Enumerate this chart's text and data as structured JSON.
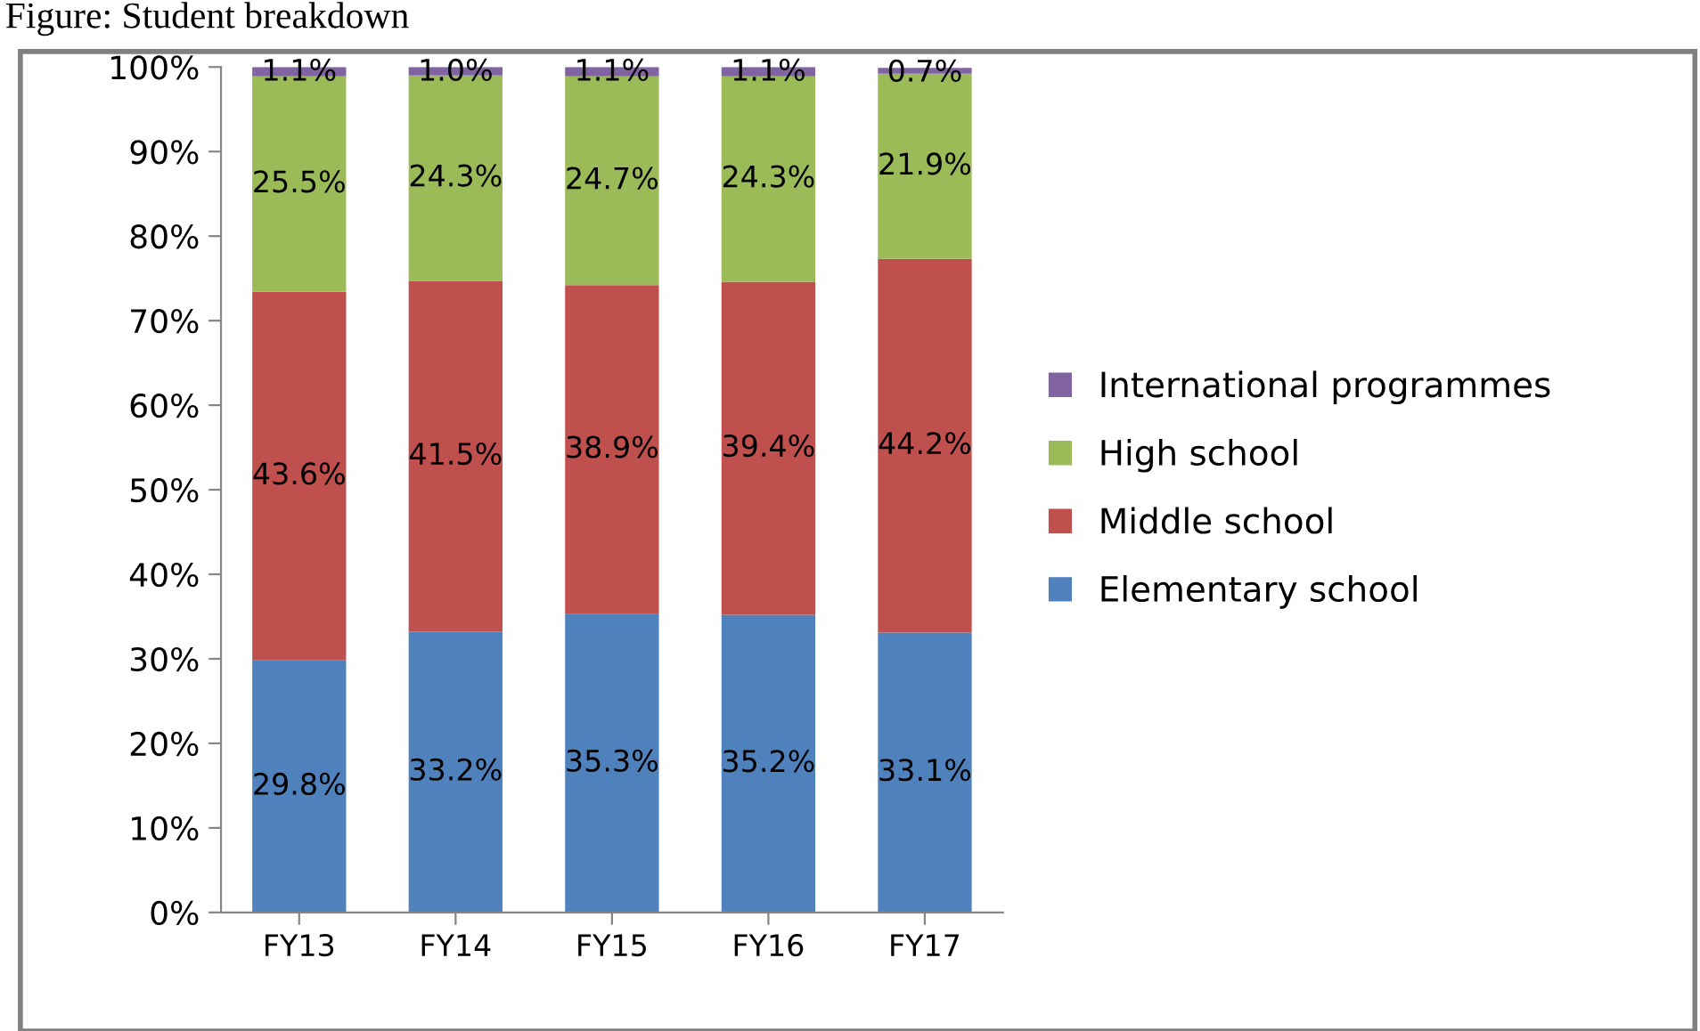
{
  "chart_data": {
    "type": "bar",
    "title": "Figure: Student breakdown",
    "stacked": true,
    "categories": [
      "FY13",
      "FY14",
      "FY15",
      "FY16",
      "FY17"
    ],
    "series": [
      {
        "name": "Elementary school",
        "color": "#4f81bd",
        "values": [
          29.8,
          33.2,
          35.3,
          35.2,
          33.1
        ],
        "value_labels": [
          "29.8%",
          "33.2%",
          "35.3%",
          "35.2%",
          "33.1%"
        ]
      },
      {
        "name": "Middle school",
        "color": "#c0504d",
        "values": [
          43.6,
          41.5,
          38.9,
          39.4,
          44.2
        ],
        "value_labels": [
          "43.6%",
          "41.5%",
          "38.9%",
          "39.4%",
          "44.2%"
        ]
      },
      {
        "name": "High school",
        "color": "#9bbb59",
        "values": [
          25.5,
          24.3,
          24.7,
          24.3,
          21.9
        ],
        "value_labels": [
          "25.5%",
          "24.3%",
          "24.7%",
          "24.3%",
          "21.9%"
        ]
      },
      {
        "name": "International programmes",
        "color": "#8064a2",
        "values": [
          1.1,
          1.0,
          1.1,
          1.1,
          0.7
        ],
        "value_labels": [
          "1.1%",
          "1.0%",
          "1.1%",
          "1.1%",
          "0.7%"
        ]
      }
    ],
    "ylim": [
      0,
      100
    ],
    "yticks": [
      {
        "value": 0,
        "label": "0%"
      },
      {
        "value": 10,
        "label": "10%"
      },
      {
        "value": 20,
        "label": "20%"
      },
      {
        "value": 30,
        "label": "30%"
      },
      {
        "value": 40,
        "label": "40%"
      },
      {
        "value": 50,
        "label": "50%"
      },
      {
        "value": 60,
        "label": "60%"
      },
      {
        "value": 70,
        "label": "70%"
      },
      {
        "value": 80,
        "label": "80%"
      },
      {
        "value": 90,
        "label": "90%"
      },
      {
        "value": 100,
        "label": "100%"
      }
    ],
    "grid": false,
    "legend": "right"
  }
}
